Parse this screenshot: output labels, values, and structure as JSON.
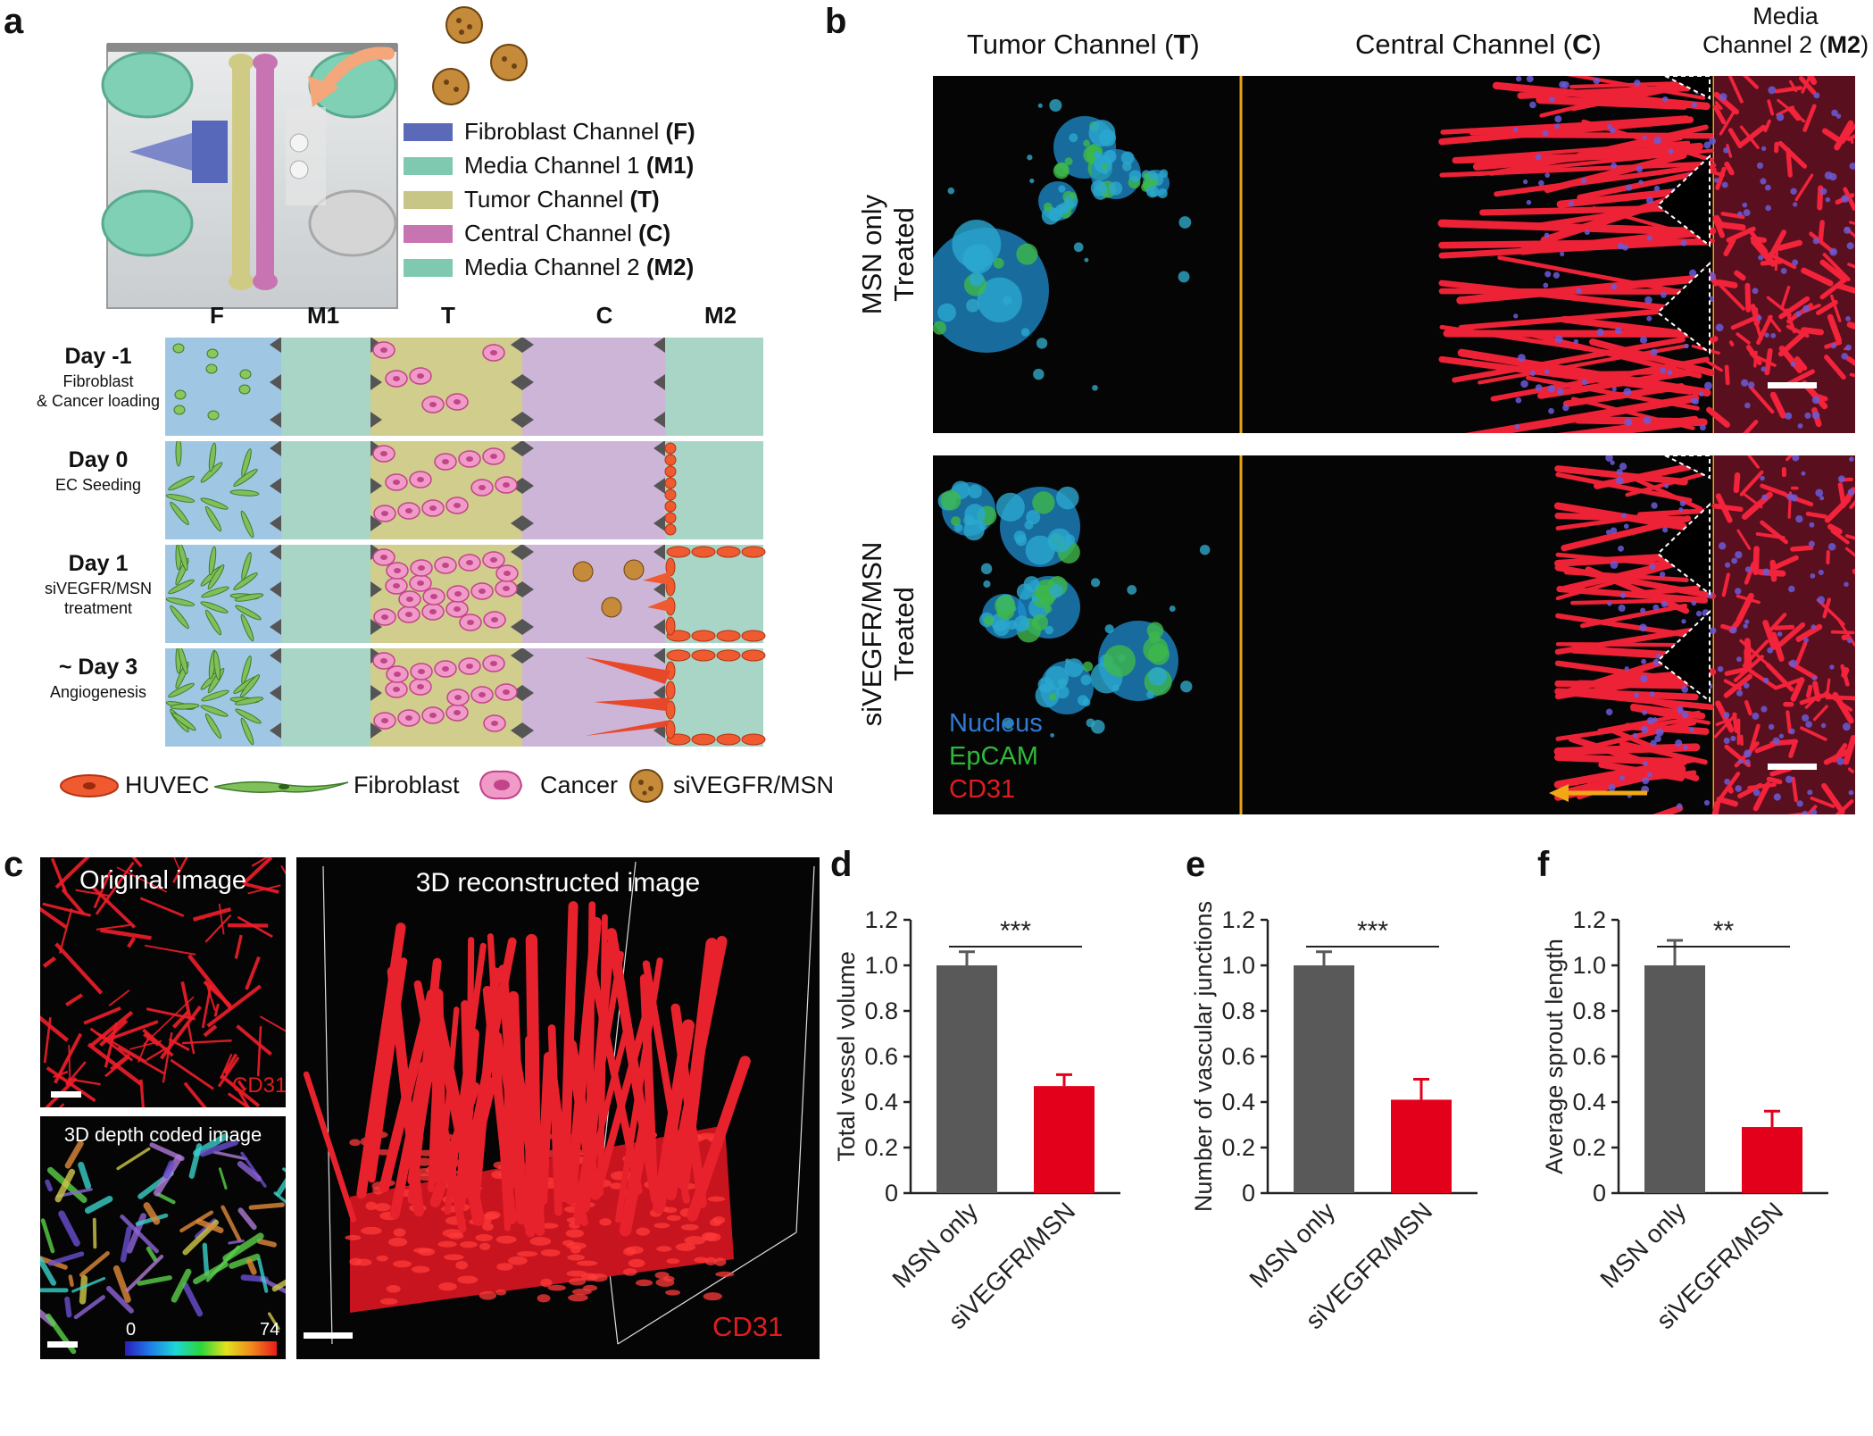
{
  "panel_labels": {
    "a": "a",
    "b": "b",
    "c": "c",
    "d": "d",
    "e": "e",
    "f": "f"
  },
  "panel_a": {
    "channel_legend": [
      {
        "name": "Fibroblast Channel",
        "abbr": "(F)",
        "color": "#5a69b8"
      },
      {
        "name": "Media Channel 1",
        "abbr": "(M1)",
        "color": "#7fc9b0"
      },
      {
        "name": "Tumor Channel",
        "abbr": "(T)",
        "color": "#c8c687"
      },
      {
        "name": "Central Channel",
        "abbr": "(C)",
        "color": "#c874b0"
      },
      {
        "name": "Media Channel 2",
        "abbr": "(M2)",
        "color": "#7fc9b0"
      }
    ],
    "column_headers": [
      "F",
      "M1",
      "T",
      "C",
      "M2"
    ],
    "rows": [
      {
        "day": "Day -1",
        "desc_line1": "Fibroblast",
        "desc_line2": "& Cancer loading"
      },
      {
        "day": "Day 0",
        "desc_line1": "EC Seeding",
        "desc_line2": ""
      },
      {
        "day": "Day 1",
        "desc_line1": "siVEGFR/MSN",
        "desc_line2": "treatment"
      },
      {
        "day": "~ Day 3",
        "desc_line1": "Angiogenesis",
        "desc_line2": ""
      }
    ],
    "cell_legend": [
      "HUVEC",
      "Fibroblast",
      "Cancer",
      "siVEGFR/MSN"
    ],
    "colors": {
      "F": "#9fc7e3",
      "M": "#a8d5c6",
      "T": "#d1cd8c",
      "C": "#cdb5d8"
    }
  },
  "panel_b": {
    "header_tumor": "Tumor Channel ",
    "header_tumor_abbr": "T",
    "header_central": "Central Channel ",
    "header_central_abbr": "C",
    "header_media_line1": "Media",
    "header_media_line2": "Channel 2 ",
    "header_media_abbr": "M2",
    "row1_label_line1": "MSN only",
    "row1_label_line2": "Treated",
    "row2_label_line1": "siVEGFR/MSN",
    "row2_label_line2": "Treated",
    "stain_nucleus": "Nucleus",
    "stain_epcam": "EpCAM",
    "stain_cd31": "CD31"
  },
  "panel_c": {
    "original_title": "Original image",
    "original_stain": "CD31",
    "depth_title": "3D depth coded image",
    "depth_min": "0",
    "depth_max": "74",
    "recon_title": "3D reconstructed image",
    "recon_stain": "CD31"
  },
  "chart_data": [
    {
      "type": "bar",
      "panel": "d",
      "categories": [
        "MSN only",
        "siVEGFR/MSN"
      ],
      "values": [
        1.0,
        0.47
      ],
      "errors": [
        0.06,
        0.05
      ],
      "colors": [
        "#595959",
        "#e3001b"
      ],
      "ylabel": "Total vessel volume",
      "ylim": [
        0,
        1.2
      ],
      "yticks": [
        "0",
        "0.2",
        "0.4",
        "0.6",
        "0.8",
        "1.0",
        "1.2"
      ],
      "significance": "***"
    },
    {
      "type": "bar",
      "panel": "e",
      "categories": [
        "MSN only",
        "siVEGFR/MSN"
      ],
      "values": [
        1.0,
        0.41
      ],
      "errors": [
        0.06,
        0.09
      ],
      "colors": [
        "#595959",
        "#e3001b"
      ],
      "ylabel": "Number of vascular junctions",
      "ylim": [
        0,
        1.2
      ],
      "yticks": [
        "0",
        "0.2",
        "0.4",
        "0.6",
        "0.8",
        "1.0",
        "1.2"
      ],
      "significance": "***"
    },
    {
      "type": "bar",
      "panel": "f",
      "categories": [
        "MSN only",
        "siVEGFR/MSN"
      ],
      "values": [
        1.0,
        0.29
      ],
      "errors": [
        0.11,
        0.07
      ],
      "colors": [
        "#595959",
        "#e3001b"
      ],
      "ylabel": "Average sprout length",
      "ylim": [
        0,
        1.2
      ],
      "yticks": [
        "0",
        "0.2",
        "0.4",
        "0.6",
        "0.8",
        "1.0",
        "1.2"
      ],
      "significance": "**"
    }
  ]
}
